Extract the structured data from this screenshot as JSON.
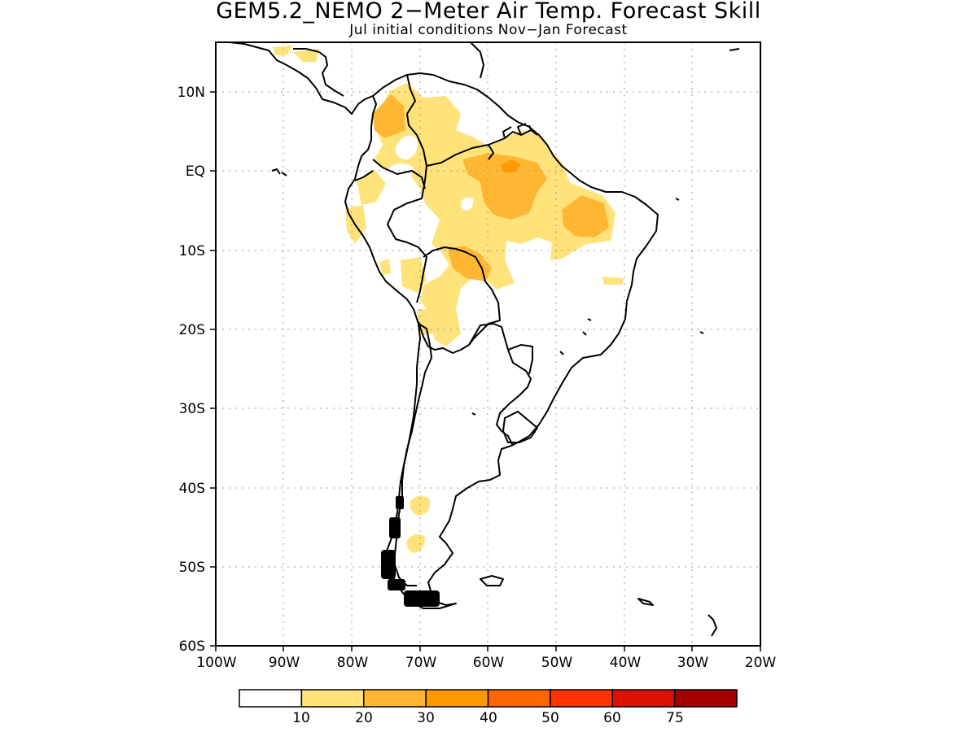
{
  "title": "GEM5.2_NEMO 2−Meter Air Temp. Forecast Skill",
  "subtitle": "Jul initial conditions   Nov−Jan Forecast",
  "map": {
    "lat_labels": [
      "10N",
      "EQ",
      "10S",
      "20S",
      "30S",
      "40S",
      "50S",
      "60S"
    ],
    "lon_labels": [
      "100W",
      "90W",
      "80W",
      "70W",
      "60W",
      "50W",
      "40W",
      "30W",
      "20W"
    ],
    "grid": "dotted",
    "lon_range": [
      -100,
      -20
    ],
    "lat_range": [
      -60,
      15
    ]
  },
  "colorbar": {
    "colors": [
      "#ffffff",
      "#ffe27a",
      "#ffb733",
      "#ff9900",
      "#ff6600",
      "#ff3300",
      "#dd1100",
      "#a50000"
    ],
    "labels": [
      "10",
      "20",
      "30",
      "40",
      "50",
      "60",
      "75"
    ]
  },
  "colors": {
    "frame": "#000000",
    "coast": "#000000",
    "grid": "#9a9a9a"
  }
}
